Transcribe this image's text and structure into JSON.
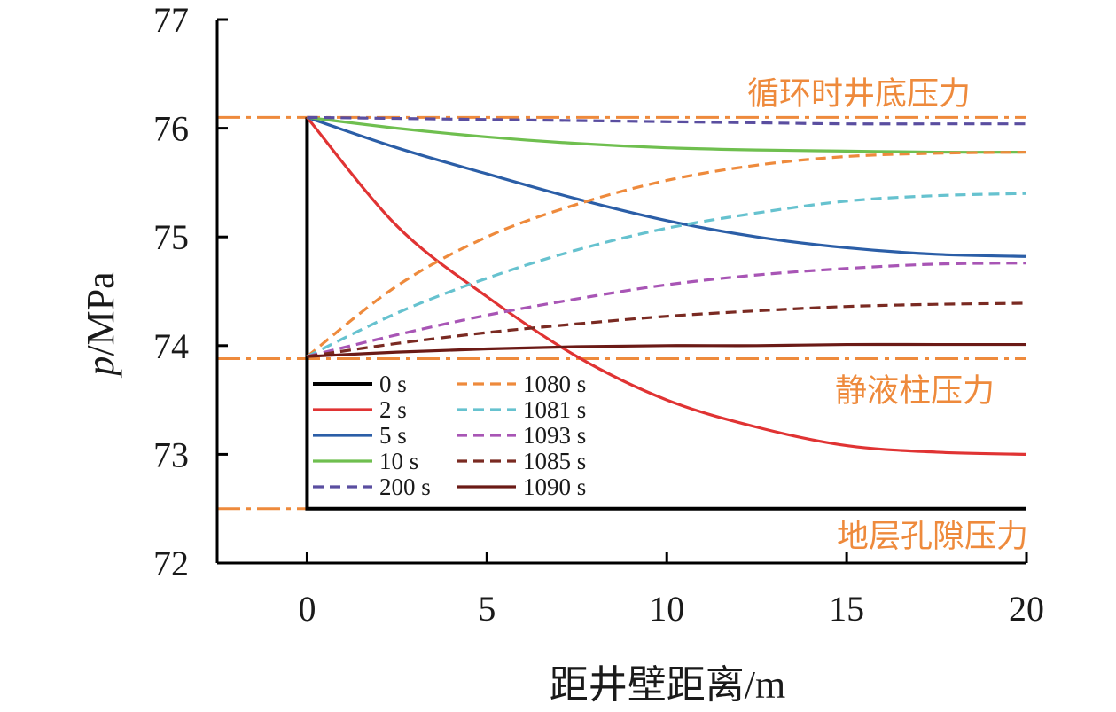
{
  "chart_data": {
    "type": "line",
    "xlabel": "距井壁距离/m",
    "ylabel_italic": "p",
    "ylabel_rest": "/MPa",
    "xlim": [
      -2.5,
      20
    ],
    "ylim": [
      72,
      77
    ],
    "xticks": [
      "0",
      "5",
      "10",
      "15",
      "20"
    ],
    "xtick_values": [
      0,
      5,
      10,
      15,
      20
    ],
    "yticks": [
      "72",
      "73",
      "74",
      "75",
      "76",
      "77"
    ],
    "ytick_values": [
      72,
      73,
      74,
      75,
      76,
      77
    ],
    "grid": false,
    "legend_position": "lower-left",
    "reference_color": "#ee8a3c",
    "reference_lines": [
      {
        "label": "循环时井底压力",
        "value": 76.1
      },
      {
        "label": "静液柱压力",
        "value": 73.88
      },
      {
        "label": "地层孔隙压力",
        "value": 72.5
      }
    ],
    "x": [
      0,
      2.5,
      5,
      7.5,
      10,
      12.5,
      15,
      17.5,
      20
    ],
    "series": [
      {
        "name": "0 s",
        "color": "#000000",
        "dash": "solid",
        "step": true,
        "start": 76.1,
        "values": [
          72.5,
          72.5,
          72.5,
          72.5,
          72.5,
          72.5,
          72.5,
          72.5,
          72.5
        ]
      },
      {
        "name": "2 s",
        "color": "#e03333",
        "dash": "solid",
        "values": [
          76.1,
          75.1,
          74.45,
          73.9,
          73.5,
          73.25,
          73.08,
          73.02,
          73.0
        ]
      },
      {
        "name": "5 s",
        "color": "#2b5ea7",
        "dash": "solid",
        "values": [
          76.1,
          75.82,
          75.58,
          75.35,
          75.15,
          75.0,
          74.9,
          74.84,
          74.82
        ]
      },
      {
        "name": "10 s",
        "color": "#6fbf4f",
        "dash": "solid",
        "values": [
          76.1,
          76.0,
          75.92,
          75.86,
          75.82,
          75.8,
          75.79,
          75.78,
          75.78
        ]
      },
      {
        "name": "200 s",
        "color": "#5a4ea0",
        "dash": "dashed",
        "values": [
          76.1,
          76.09,
          76.08,
          76.07,
          76.06,
          76.05,
          76.04,
          76.04,
          76.04
        ]
      },
      {
        "name": "1080 s",
        "color": "#ee8a3c",
        "dash": "dashed",
        "values": [
          73.9,
          74.55,
          75.0,
          75.3,
          75.52,
          75.66,
          75.74,
          75.77,
          75.78
        ]
      },
      {
        "name": "1081 s",
        "color": "#66c2cf",
        "dash": "dashed",
        "values": [
          73.9,
          74.3,
          74.62,
          74.88,
          75.08,
          75.22,
          75.33,
          75.38,
          75.4
        ]
      },
      {
        "name": "1093 s",
        "color": "#a855b5",
        "dash": "dashed",
        "values": [
          73.9,
          74.1,
          74.28,
          74.43,
          74.56,
          74.65,
          74.71,
          74.75,
          74.76
        ]
      },
      {
        "name": "1085 s",
        "color": "#7a2a22",
        "dash": "dashed",
        "values": [
          73.9,
          74.02,
          74.12,
          74.2,
          74.27,
          74.32,
          74.36,
          74.38,
          74.39
        ]
      },
      {
        "name": "1090 s",
        "color": "#6b1a16",
        "dash": "solid",
        "values": [
          73.9,
          73.94,
          73.97,
          73.99,
          74.0,
          74.0,
          74.01,
          74.01,
          74.01
        ]
      }
    ]
  }
}
